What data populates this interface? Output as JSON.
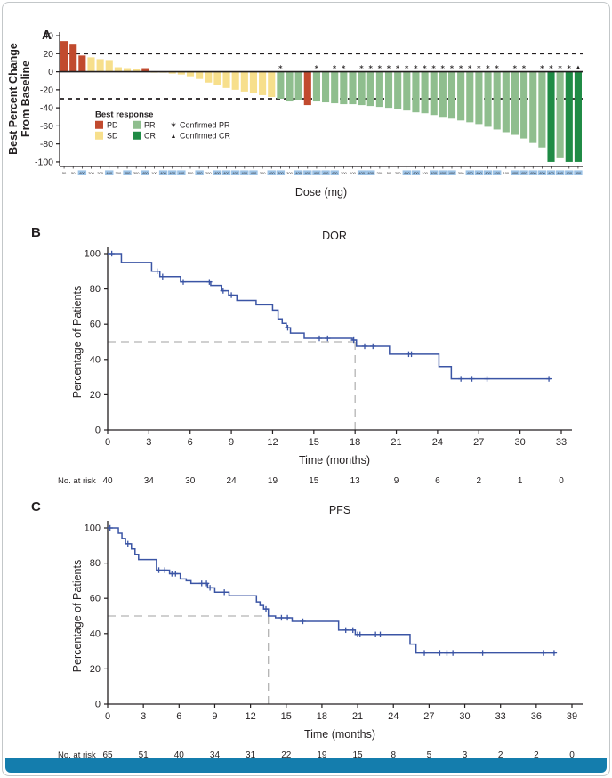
{
  "figure": {
    "panel_labels": {
      "a": "A",
      "b": "B",
      "c": "C"
    }
  },
  "colors": {
    "response": {
      "PD": "#c14a2e",
      "SD": "#f7df8c",
      "PR": "#8fbe8e",
      "CR": "#1f8b45"
    },
    "km_line": "#3b55a5",
    "median_dash": "#b4b4b4",
    "axis": "#231f20",
    "dose_highlight": "#9dc3e6",
    "footer_stripe": "#147dad"
  },
  "chart_data": [
    {
      "id": "waterfall",
      "type": "bar",
      "panel": "A",
      "ylabel": "Best Percent Change From Baseline",
      "ylabel_lines": [
        "Best Percent Change",
        "From Baseline"
      ],
      "xlabel": "Dose (mg)",
      "ylim": [
        -105,
        45
      ],
      "yticks": [
        40,
        20,
        0,
        -20,
        -40,
        -60,
        -80,
        -100
      ],
      "ref_lines": [
        20,
        -30
      ],
      "legend": {
        "title": "Best response",
        "items": [
          {
            "label": "PD",
            "key": "PD"
          },
          {
            "label": "SD",
            "key": "SD"
          },
          {
            "label": "PR",
            "key": "PR"
          },
          {
            "label": "CR",
            "key": "CR"
          }
        ],
        "marker_items": [
          {
            "symbol": "star",
            "label": "Confirmed PR"
          },
          {
            "symbol": "triangle",
            "label": "Confirmed CR"
          }
        ]
      },
      "dose_highlight_value": "400",
      "bars": [
        {
          "v": 34,
          "r": "PD",
          "m": null,
          "d": "50"
        },
        {
          "v": 31,
          "r": "PD",
          "m": null,
          "d": "50"
        },
        {
          "v": 18,
          "r": "PD",
          "m": null,
          "d": "400"
        },
        {
          "v": 16,
          "r": "SD",
          "m": null,
          "d": "200"
        },
        {
          "v": 14,
          "r": "SD",
          "m": null,
          "d": "200"
        },
        {
          "v": 13,
          "r": "SD",
          "m": null,
          "d": "400"
        },
        {
          "v": 5,
          "r": "SD",
          "m": null,
          "d": "300"
        },
        {
          "v": 4,
          "r": "SD",
          "m": null,
          "d": "400"
        },
        {
          "v": 3,
          "r": "SD",
          "m": null,
          "d": "300"
        },
        {
          "v": 4,
          "r": "PD",
          "m": null,
          "d": "400"
        },
        {
          "v": -1,
          "r": "SD",
          "m": null,
          "d": "100"
        },
        {
          "v": -1,
          "r": "SD",
          "m": null,
          "d": "400"
        },
        {
          "v": -2,
          "r": "SD",
          "m": null,
          "d": "400"
        },
        {
          "v": -3,
          "r": "SD",
          "m": null,
          "d": "400"
        },
        {
          "v": -5,
          "r": "SD",
          "m": null,
          "d": "100"
        },
        {
          "v": -8,
          "r": "SD",
          "m": null,
          "d": "400"
        },
        {
          "v": -12,
          "r": "SD",
          "m": null,
          "d": "200"
        },
        {
          "v": -15,
          "r": "SD",
          "m": null,
          "d": "400"
        },
        {
          "v": -18,
          "r": "SD",
          "m": null,
          "d": "400"
        },
        {
          "v": -20,
          "r": "SD",
          "m": null,
          "d": "400"
        },
        {
          "v": -22,
          "r": "SD",
          "m": null,
          "d": "400"
        },
        {
          "v": -24,
          "r": "SD",
          "m": null,
          "d": "400"
        },
        {
          "v": -26,
          "r": "SD",
          "m": null,
          "d": "300"
        },
        {
          "v": -28,
          "r": "SD",
          "m": null,
          "d": "400"
        },
        {
          "v": -30,
          "r": "PR",
          "m": "star",
          "d": "400"
        },
        {
          "v": -33,
          "r": "PR",
          "m": null,
          "d": "300"
        },
        {
          "v": -31,
          "r": "PR",
          "m": null,
          "d": "400"
        },
        {
          "v": -37,
          "r": "PD",
          "m": null,
          "d": "400"
        },
        {
          "v": -33,
          "r": "PR",
          "m": "star",
          "d": "400"
        },
        {
          "v": -34,
          "r": "PR",
          "m": null,
          "d": "400"
        },
        {
          "v": -35,
          "r": "PR",
          "m": "star",
          "d": "400"
        },
        {
          "v": -36,
          "r": "PR",
          "m": "star",
          "d": "200"
        },
        {
          "v": -36,
          "r": "PR",
          "m": null,
          "d": "100"
        },
        {
          "v": -37,
          "r": "PR",
          "m": "star",
          "d": "400"
        },
        {
          "v": -38,
          "r": "PR",
          "m": "star",
          "d": "400"
        },
        {
          "v": -39,
          "r": "PR",
          "m": "star",
          "d": "200"
        },
        {
          "v": -40,
          "r": "PR",
          "m": "star",
          "d": "50"
        },
        {
          "v": -41,
          "r": "PR",
          "m": "star",
          "d": "200"
        },
        {
          "v": -43,
          "r": "PR",
          "m": "star",
          "d": "400"
        },
        {
          "v": -45,
          "r": "PR",
          "m": "star",
          "d": "400"
        },
        {
          "v": -46,
          "r": "PR",
          "m": "star",
          "d": "100"
        },
        {
          "v": -48,
          "r": "PR",
          "m": "star",
          "d": "400"
        },
        {
          "v": -50,
          "r": "PR",
          "m": "star",
          "d": "400"
        },
        {
          "v": -52,
          "r": "PR",
          "m": "star",
          "d": "400"
        },
        {
          "v": -54,
          "r": "PR",
          "m": "star",
          "d": "300"
        },
        {
          "v": -56,
          "r": "PR",
          "m": "star",
          "d": "400"
        },
        {
          "v": -58,
          "r": "PR",
          "m": "star",
          "d": "400"
        },
        {
          "v": -61,
          "r": "PR",
          "m": "star",
          "d": "400"
        },
        {
          "v": -64,
          "r": "PR",
          "m": "star",
          "d": "400"
        },
        {
          "v": -67,
          "r": "PR",
          "m": null,
          "d": "100"
        },
        {
          "v": -70,
          "r": "PR",
          "m": "star",
          "d": "400"
        },
        {
          "v": -74,
          "r": "PR",
          "m": "star",
          "d": "400"
        },
        {
          "v": -79,
          "r": "PR",
          "m": null,
          "d": "400"
        },
        {
          "v": -84,
          "r": "PR",
          "m": "star",
          "d": "400"
        },
        {
          "v": -100,
          "r": "CR",
          "m": "star",
          "d": "400"
        },
        {
          "v": -95,
          "r": "PR",
          "m": "star",
          "d": "400"
        },
        {
          "v": -100,
          "r": "CR",
          "m": "star",
          "d": "400"
        },
        {
          "v": -100,
          "r": "CR",
          "m": "triangle",
          "d": "400"
        }
      ]
    },
    {
      "id": "dor",
      "type": "line",
      "panel": "B",
      "title": "DOR",
      "ylabel": "Percentage of Patients",
      "xlabel": "Time (months)",
      "ylim": [
        0,
        100
      ],
      "yticks": [
        0,
        20,
        40,
        60,
        80,
        100
      ],
      "xticks": [
        0,
        3,
        6,
        9,
        12,
        15,
        18,
        21,
        24,
        27,
        30,
        33
      ],
      "xmax": 33,
      "median_x": 18,
      "median_y": 50,
      "start": [
        0,
        100
      ],
      "end_x": 32.2,
      "drops": [
        [
          1,
          95
        ],
        [
          3.2,
          90
        ],
        [
          3.8,
          87
        ],
        [
          5.3,
          84
        ],
        [
          7.5,
          82
        ],
        [
          8.3,
          79
        ],
        [
          8.8,
          76.5
        ],
        [
          9.4,
          73.5
        ],
        [
          10.8,
          71
        ],
        [
          12.0,
          68
        ],
        [
          12.4,
          63
        ],
        [
          12.7,
          60.5
        ],
        [
          13.0,
          58
        ],
        [
          13.3,
          55
        ],
        [
          14.3,
          52
        ],
        [
          17.8,
          51
        ],
        [
          18.1,
          47.5
        ],
        [
          20.5,
          43
        ],
        [
          24.1,
          36
        ],
        [
          25.0,
          29
        ]
      ],
      "censors": [
        [
          0.3,
          100
        ],
        [
          3.6,
          90
        ],
        [
          4.0,
          87
        ],
        [
          5.5,
          84
        ],
        [
          7.4,
          84
        ],
        [
          8.4,
          79
        ],
        [
          9.0,
          76.5
        ],
        [
          13.1,
          58
        ],
        [
          15.4,
          52
        ],
        [
          16.0,
          52
        ],
        [
          17.9,
          51
        ],
        [
          18.7,
          47.5
        ],
        [
          19.3,
          47.5
        ],
        [
          21.9,
          43
        ],
        [
          22.1,
          43
        ],
        [
          25.7,
          29
        ],
        [
          26.5,
          29
        ],
        [
          27.6,
          29
        ],
        [
          32.1,
          29
        ]
      ],
      "at_risk": {
        "label": "No. at risk",
        "values": [
          40,
          34,
          30,
          24,
          19,
          15,
          13,
          9,
          6,
          2,
          1,
          0
        ]
      }
    },
    {
      "id": "pfs",
      "type": "line",
      "panel": "C",
      "title": "PFS",
      "ylabel": "Percentage of Patients",
      "xlabel": "Time (months)",
      "ylim": [
        0,
        100
      ],
      "yticks": [
        0,
        20,
        40,
        60,
        80,
        100
      ],
      "xticks": [
        0,
        3,
        6,
        9,
        12,
        15,
        18,
        21,
        24,
        27,
        30,
        33,
        36,
        39
      ],
      "xmax": 39,
      "median_x": 13.5,
      "median_y": 50,
      "start": [
        0,
        100
      ],
      "end_x": 37.6,
      "drops": [
        [
          0.9,
          97
        ],
        [
          1.2,
          94
        ],
        [
          1.5,
          91
        ],
        [
          2.0,
          88
        ],
        [
          2.3,
          85
        ],
        [
          2.6,
          82
        ],
        [
          4.1,
          76
        ],
        [
          5.2,
          74
        ],
        [
          6.1,
          71
        ],
        [
          6.6,
          70
        ],
        [
          7.0,
          68.5
        ],
        [
          8.4,
          66
        ],
        [
          9.0,
          63.5
        ],
        [
          10.2,
          61.5
        ],
        [
          12.5,
          58
        ],
        [
          12.8,
          56
        ],
        [
          13.1,
          54
        ],
        [
          13.5,
          50
        ],
        [
          14.1,
          49
        ],
        [
          15.5,
          47
        ],
        [
          19.4,
          42
        ],
        [
          20.8,
          39.5
        ],
        [
          25.4,
          34
        ],
        [
          25.9,
          29
        ]
      ],
      "censors": [
        [
          0.2,
          100
        ],
        [
          1.7,
          91
        ],
        [
          4.3,
          76
        ],
        [
          4.8,
          76
        ],
        [
          5.4,
          74
        ],
        [
          5.7,
          74
        ],
        [
          7.9,
          68.5
        ],
        [
          8.3,
          68.5
        ],
        [
          8.6,
          66
        ],
        [
          9.8,
          63.5
        ],
        [
          13.3,
          54
        ],
        [
          14.6,
          49
        ],
        [
          15.1,
          49
        ],
        [
          16.4,
          47
        ],
        [
          20.0,
          42
        ],
        [
          20.6,
          42
        ],
        [
          21.0,
          39.5
        ],
        [
          21.2,
          39.5
        ],
        [
          22.5,
          39.5
        ],
        [
          22.9,
          39.5
        ],
        [
          26.6,
          29
        ],
        [
          27.9,
          29
        ],
        [
          28.5,
          29
        ],
        [
          29.0,
          29
        ],
        [
          31.5,
          29
        ],
        [
          36.6,
          29
        ],
        [
          37.5,
          29
        ]
      ],
      "at_risk": {
        "label": "No. at risk",
        "values": [
          65,
          51,
          40,
          34,
          31,
          22,
          19,
          15,
          8,
          5,
          3,
          2,
          2,
          0
        ]
      }
    }
  ]
}
